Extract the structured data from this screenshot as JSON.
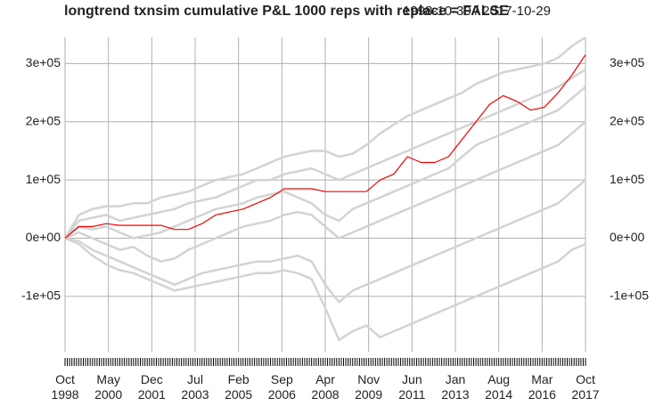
{
  "chart_data": {
    "type": "line",
    "title": "longtrend txnsim cumulative P&L 1000 reps with replace = FALSE",
    "date_range": "1998-10-30 / 2017-10-29",
    "x": [
      "1998-10",
      "1999-04",
      "1999-10",
      "2000-04",
      "2000-10",
      "2001-04",
      "2001-10",
      "2002-04",
      "2002-10",
      "2003-04",
      "2003-10",
      "2004-04",
      "2004-10",
      "2005-04",
      "2005-10",
      "2006-04",
      "2006-10",
      "2007-04",
      "2007-10",
      "2008-04",
      "2008-10",
      "2009-04",
      "2009-10",
      "2010-04",
      "2010-10",
      "2011-04",
      "2011-10",
      "2012-04",
      "2012-10",
      "2013-04",
      "2013-10",
      "2014-04",
      "2014-10",
      "2015-04",
      "2015-10",
      "2016-04",
      "2016-10",
      "2017-04",
      "2017-10"
    ],
    "xlim": [
      "1998-10",
      "2017-10"
    ],
    "xticks": [
      {
        "value": "1998-10",
        "label": "Oct 1998"
      },
      {
        "value": "2000-05",
        "label": "May 2000"
      },
      {
        "value": "2001-12",
        "label": "Dec 2001"
      },
      {
        "value": "2003-07",
        "label": "Jul 2003"
      },
      {
        "value": "2005-02",
        "label": "Feb 2005"
      },
      {
        "value": "2006-09",
        "label": "Sep 2006"
      },
      {
        "value": "2008-04",
        "label": "Apr 2008"
      },
      {
        "value": "2009-11",
        "label": "Nov 2009"
      },
      {
        "value": "2011-06",
        "label": "Jun 2011"
      },
      {
        "value": "2013-01",
        "label": "Jan 2013"
      },
      {
        "value": "2014-08",
        "label": "Aug 2014"
      },
      {
        "value": "2016-03",
        "label": "Mar 2016"
      },
      {
        "value": "2017-10",
        "label": "Oct 2017"
      }
    ],
    "ylim": [
      -195000,
      345000
    ],
    "yticks": [
      {
        "value": -100000,
        "label": "-1e+05"
      },
      {
        "value": 0,
        "label": "0e+00"
      },
      {
        "value": 100000,
        "label": "1e+05"
      },
      {
        "value": 200000,
        "label": "2e+05"
      },
      {
        "value": 300000,
        "label": "3e+05"
      }
    ],
    "grid": true,
    "series": [
      {
        "color": "#d3d3d3",
        "values": [
          0,
          40000,
          50000,
          55000,
          55000,
          60000,
          60000,
          70000,
          75000,
          80000,
          90000,
          100000,
          105000,
          110000,
          120000,
          130000,
          140000,
          145000,
          150000,
          150000,
          140000,
          145000,
          160000,
          180000,
          195000,
          210000,
          220000,
          230000,
          240000,
          250000,
          265000,
          275000,
          285000,
          290000,
          295000,
          300000,
          310000,
          330000,
          345000
        ]
      },
      {
        "color": "#d3d3d3",
        "values": [
          0,
          30000,
          35000,
          40000,
          30000,
          35000,
          40000,
          45000,
          50000,
          60000,
          65000,
          70000,
          80000,
          90000,
          100000,
          100000,
          110000,
          115000,
          120000,
          110000,
          100000,
          110000,
          120000,
          130000,
          140000,
          150000,
          160000,
          170000,
          180000,
          190000,
          200000,
          210000,
          220000,
          230000,
          240000,
          250000,
          260000,
          275000,
          290000
        ]
      },
      {
        "color": "#d3d3d3",
        "values": [
          0,
          10000,
          0,
          -10000,
          -20000,
          -15000,
          -30000,
          -40000,
          -35000,
          -20000,
          -10000,
          0,
          10000,
          20000,
          25000,
          30000,
          40000,
          45000,
          40000,
          20000,
          0,
          10000,
          20000,
          30000,
          40000,
          50000,
          60000,
          70000,
          80000,
          90000,
          100000,
          110000,
          120000,
          130000,
          140000,
          150000,
          160000,
          180000,
          200000
        ]
      },
      {
        "color": "#d3d3d3",
        "values": [
          0,
          -5000,
          -20000,
          -30000,
          -40000,
          -50000,
          -60000,
          -70000,
          -80000,
          -70000,
          -60000,
          -55000,
          -50000,
          -45000,
          -40000,
          -40000,
          -35000,
          -30000,
          -40000,
          -80000,
          -110000,
          -90000,
          -80000,
          -70000,
          -60000,
          -50000,
          -40000,
          -30000,
          -20000,
          -10000,
          0,
          10000,
          20000,
          30000,
          40000,
          50000,
          60000,
          80000,
          100000
        ]
      },
      {
        "color": "#d3d3d3",
        "values": [
          0,
          -10000,
          -30000,
          -45000,
          -55000,
          -60000,
          -70000,
          -80000,
          -90000,
          -85000,
          -80000,
          -75000,
          -70000,
          -65000,
          -60000,
          -60000,
          -55000,
          -60000,
          -70000,
          -120000,
          -175000,
          -160000,
          -150000,
          -170000,
          -160000,
          -150000,
          -140000,
          -130000,
          -120000,
          -110000,
          -100000,
          -90000,
          -80000,
          -70000,
          -60000,
          -50000,
          -40000,
          -20000,
          -10000
        ]
      },
      {
        "color": "#d3d3d3",
        "values": [
          0,
          20000,
          15000,
          20000,
          10000,
          0,
          5000,
          10000,
          20000,
          30000,
          40000,
          50000,
          55000,
          60000,
          70000,
          75000,
          80000,
          70000,
          60000,
          40000,
          30000,
          50000,
          60000,
          70000,
          80000,
          90000,
          100000,
          110000,
          120000,
          140000,
          160000,
          170000,
          180000,
          190000,
          200000,
          210000,
          220000,
          240000,
          260000
        ]
      },
      {
        "color": "#ff0000",
        "values": [
          0,
          20000,
          20000,
          25000,
          22000,
          22000,
          22000,
          22000,
          15000,
          15000,
          25000,
          40000,
          45000,
          50000,
          60000,
          70000,
          85000,
          85000,
          85000,
          80000,
          80000,
          80000,
          80000,
          100000,
          110000,
          140000,
          130000,
          130000,
          140000,
          170000,
          200000,
          230000,
          245000,
          235000,
          220000,
          225000,
          250000,
          280000,
          315000
        ]
      }
    ]
  }
}
